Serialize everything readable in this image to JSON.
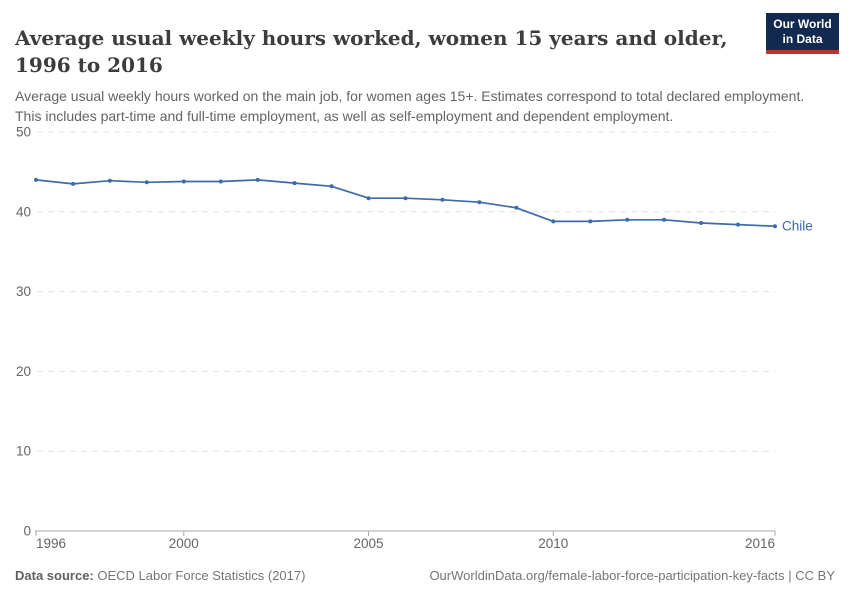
{
  "header": {
    "title": "Average usual weekly hours worked, women 15 years and older, 1996 to 2016",
    "logo": {
      "line1": "Our World",
      "line2": "in Data",
      "bg_color": "#122a4f",
      "accent_color": "#c0342f"
    }
  },
  "subtitle": "Average usual weekly hours worked on the main job, for women ages 15+. Estimates correspond to total declared employment. This includes part-time and full-time employment, as well as self-employment and dependent employment.",
  "chart_data": {
    "type": "line",
    "title": "Average usual weekly hours worked, women 15 years and older, 1996 to 2016",
    "x": [
      1996,
      1997,
      1998,
      1999,
      2000,
      2001,
      2002,
      2003,
      2004,
      2005,
      2006,
      2007,
      2008,
      2009,
      2010,
      2011,
      2012,
      2013,
      2014,
      2015,
      2016
    ],
    "series": [
      {
        "name": "Chile",
        "color": "#3d6aa8",
        "values": [
          44.0,
          43.5,
          43.9,
          43.7,
          43.8,
          43.8,
          44.0,
          43.6,
          43.2,
          41.7,
          41.7,
          41.5,
          41.2,
          40.5,
          38.8,
          38.8,
          39.0,
          39.0,
          38.6,
          38.4,
          38.2
        ]
      }
    ],
    "xlabel": "",
    "ylabel": "",
    "ylim": [
      0,
      50
    ],
    "yticks": [
      0,
      10,
      20,
      30,
      40,
      50
    ],
    "xticks": [
      1996,
      2000,
      2005,
      2010,
      2016
    ],
    "grid": "horizontal-dashed",
    "legend_position": "end-of-line-label",
    "colors": {
      "gridline": "#e0e0e0",
      "axis": "#a8a8a8",
      "tick_label": "#666666"
    }
  },
  "footer": {
    "source_label": "Data source:",
    "source_text": " OECD Labor Force Statistics (2017)",
    "link_text": "OurWorldinData.org/female-labor-force-participation-key-facts | CC BY"
  }
}
